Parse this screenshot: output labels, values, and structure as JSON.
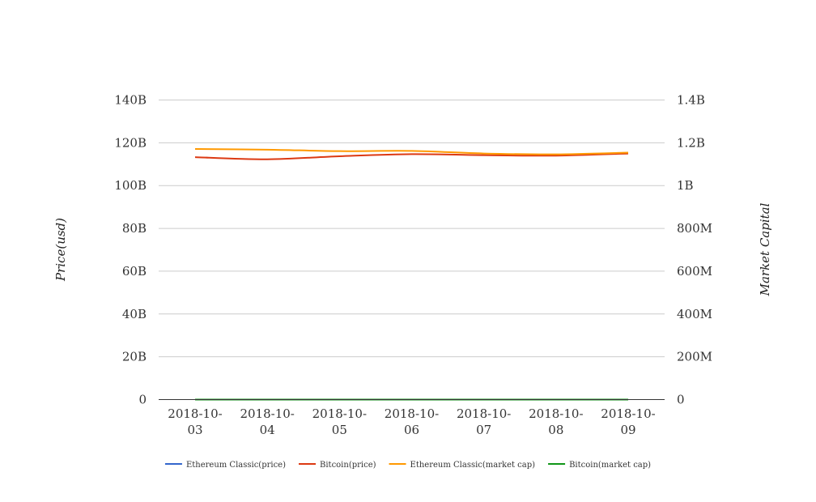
{
  "chart_data": {
    "type": "line",
    "title": "",
    "categories": [
      "2018-10-03",
      "2018-10-04",
      "2018-10-05",
      "2018-10-06",
      "2018-10-07",
      "2018-10-08",
      "2018-10-09"
    ],
    "category_labels": [
      [
        "2018-10-",
        "03"
      ],
      [
        "2018-10-",
        "04"
      ],
      [
        "2018-10-",
        "05"
      ],
      [
        "2018-10-",
        "06"
      ],
      [
        "2018-10-",
        "07"
      ],
      [
        "2018-10-",
        "08"
      ],
      [
        "2018-10-",
        "09"
      ]
    ],
    "left_axis": {
      "label": "Price(usd)",
      "ylim": [
        0,
        140000000000
      ],
      "ticks": [
        0,
        20000000000,
        40000000000,
        60000000000,
        80000000000,
        100000000000,
        120000000000,
        140000000000
      ],
      "tick_labels": [
        "0",
        "20B",
        "40B",
        "60B",
        "80B",
        "100B",
        "120B",
        "140B"
      ]
    },
    "right_axis": {
      "label": "Market Capital",
      "ylim": [
        0,
        1400000000
      ],
      "ticks": [
        0,
        200000000,
        400000000,
        600000000,
        800000000,
        1000000000,
        1200000000,
        1400000000
      ],
      "tick_labels": [
        "0",
        "200M",
        "400M",
        "600M",
        "800M",
        "1B",
        "1.2B",
        "1.4B"
      ]
    },
    "grid": true,
    "legend_position": "bottom",
    "series": [
      {
        "name": "Ethereum Classic(price)",
        "axis": "left",
        "color": "#3366cc",
        "values": [
          10,
          10,
          10,
          10,
          10,
          10,
          10
        ]
      },
      {
        "name": "Bitcoin(price)",
        "axis": "left",
        "color": "#dc3912",
        "values": [
          113300000000,
          112300000000,
          113700000000,
          114700000000,
          114200000000,
          114000000000,
          115000000000
        ]
      },
      {
        "name": "Ethereum Classic(market cap)",
        "axis": "right",
        "color": "#ff9900",
        "values": [
          1171000000,
          1168000000,
          1161000000,
          1162000000,
          1150000000,
          1146000000,
          1154000000
        ]
      },
      {
        "name": "Bitcoin(market cap)",
        "axis": "right",
        "color": "#109618",
        "values": [
          200,
          200,
          200,
          200,
          200,
          200,
          200
        ]
      }
    ]
  }
}
